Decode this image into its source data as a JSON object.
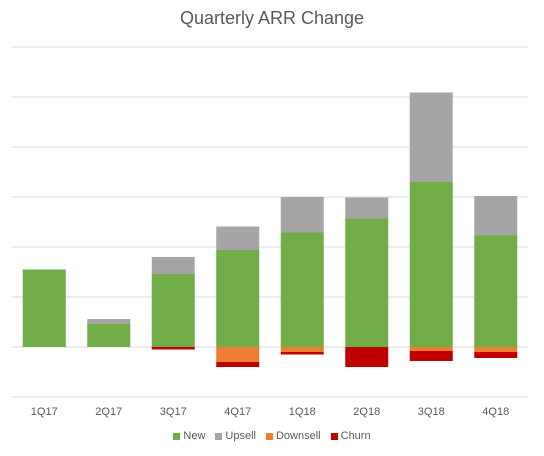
{
  "chart_data": {
    "type": "bar",
    "stacked": true,
    "title": "Quarterly ARR Change",
    "xlabel": "",
    "ylabel": "",
    "categories": [
      "1Q17",
      "2Q17",
      "3Q17",
      "4Q17",
      "1Q18",
      "2Q18",
      "3Q18",
      "4Q18"
    ],
    "series": [
      {
        "name": "New",
        "color": "#70ad47",
        "values": [
          1.55,
          0.46,
          1.46,
          1.94,
          2.29,
          2.57,
          3.3,
          2.23
        ]
      },
      {
        "name": "Upsell",
        "color": "#a5a5a5",
        "values": [
          0.0,
          0.1,
          0.34,
          0.47,
          0.71,
          0.42,
          1.79,
          0.79
        ]
      },
      {
        "name": "Downsell",
        "color": "#ed7d31",
        "values": [
          0.0,
          0.0,
          0.0,
          -0.3,
          -0.1,
          0.0,
          -0.08,
          -0.1
        ]
      },
      {
        "name": "Churn",
        "color": "#c00000",
        "values": [
          0.0,
          0.0,
          -0.05,
          -0.1,
          -0.05,
          -0.4,
          -0.2,
          -0.12
        ]
      }
    ],
    "ylim": [
      -1,
      6
    ],
    "yticks_labeled": false,
    "grid": true,
    "legend_position": "bottom"
  }
}
